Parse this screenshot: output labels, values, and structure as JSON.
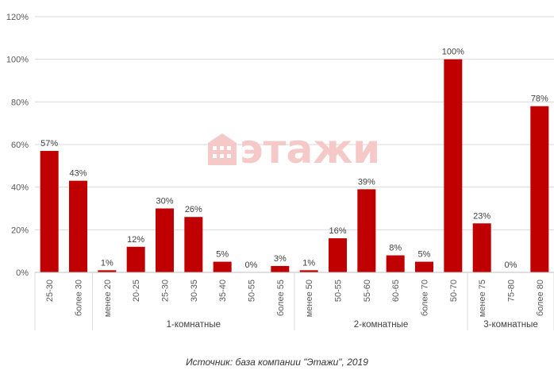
{
  "watermark": "этажи",
  "source": "Источник: база компании \"Этажи\", 2019",
  "chart_data": {
    "type": "bar",
    "categories": [
      "25-30",
      "более 30",
      "менее 20",
      "20-25",
      "25-30",
      "30-35",
      "35-40",
      "50-55",
      "более 55",
      "менее 50",
      "50-55",
      "55-60",
      "60-65",
      "более 70",
      "50-70",
      "менее 75",
      "75-80",
      "более 80"
    ],
    "values": [
      57,
      43,
      1,
      12,
      30,
      26,
      5,
      0,
      3,
      1,
      16,
      39,
      8,
      5,
      100,
      23,
      0,
      78
    ],
    "value_labels": [
      "57%",
      "43%",
      "1%",
      "12%",
      "30%",
      "26%",
      "5%",
      "0%",
      "3%",
      "1%",
      "16%",
      "39%",
      "8%",
      "5%",
      "100%",
      "23%",
      "0%",
      "78%"
    ],
    "groups": [
      {
        "name": "",
        "count": 2
      },
      {
        "name": "1-комнатные",
        "count": 7
      },
      {
        "name": "2-комнатные",
        "count": 6
      },
      {
        "name": "3-комнатные",
        "count": 3
      }
    ],
    "yticks": [
      "0%",
      "20%",
      "40%",
      "60%",
      "80%",
      "100%",
      "120%"
    ],
    "ylim": [
      0,
      120
    ],
    "grid": true,
    "bar_color": "#c00000"
  }
}
